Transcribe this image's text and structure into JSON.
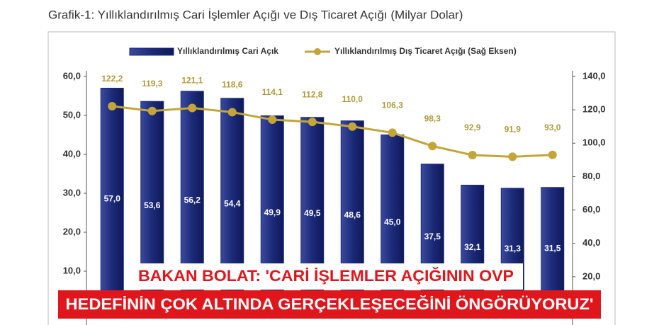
{
  "chart_data": {
    "type": "bar-line",
    "title": "Grafik-1: Yıllıklandırılmış Cari İşlemler Açığı ve Dış Ticaret Açığı (Milyar Dolar)",
    "series": [
      {
        "name": "Yıllıklandırılmış Cari Açık",
        "type": "bar",
        "color": "#1c2a78",
        "values": [
          57.0,
          53.6,
          56.2,
          54.4,
          49.9,
          49.5,
          48.6,
          45.0,
          37.5,
          32.1,
          31.3,
          31.5
        ],
        "value_labels": [
          "57,0",
          "53,6",
          "56,2",
          "54,4",
          "49,9",
          "49,5",
          "48,6",
          "45,0",
          "37,5",
          "32,1",
          "31,3",
          "31,5"
        ]
      },
      {
        "name": "Yıllıklandırılmış Dış Ticaret Açığı (Sağ Eksen)",
        "type": "line",
        "axis": "y2",
        "color": "#c3a53a",
        "values": [
          122.2,
          119.3,
          121.1,
          118.6,
          114.1,
          112.8,
          110.0,
          106.3,
          98.3,
          92.9,
          91.9,
          93.0
        ],
        "value_labels": [
          "122,2",
          "119,3",
          "121,1",
          "118,6",
          "114,1",
          "112,8",
          "110,0",
          "106,3",
          "98,3",
          "92,9",
          "91,9",
          "93,0"
        ]
      }
    ],
    "ylim": [
      0,
      60
    ],
    "yticks": [
      {
        "value": 10,
        "label": "10,0"
      },
      {
        "value": 20,
        "label": "20,0"
      },
      {
        "value": 30,
        "label": "30,0"
      },
      {
        "value": 40,
        "label": "40,0"
      },
      {
        "value": 50,
        "label": "50,0"
      },
      {
        "value": 60,
        "label": "60,0"
      }
    ],
    "y2lim": [
      0,
      140
    ],
    "y2ticks": [
      {
        "value": 20,
        "label": "20,0"
      },
      {
        "value": 40,
        "label": "40,0"
      },
      {
        "value": 60,
        "label": "60,0"
      },
      {
        "value": 80,
        "label": "80,0"
      },
      {
        "value": 100,
        "label": "100,0"
      },
      {
        "value": 120,
        "label": "120,0"
      },
      {
        "value": 140,
        "label": "140,0"
      }
    ],
    "legend": "top"
  },
  "headline": {
    "lines": [
      "BAKAN BOLAT: 'CARİ İŞLEMLER AÇIĞININ OVP",
      "HEDEFİNİN ÇOK ALTINDA GERÇEKLEŞECEĞİNİ ÖNGÖRÜYORUZ'"
    ]
  }
}
